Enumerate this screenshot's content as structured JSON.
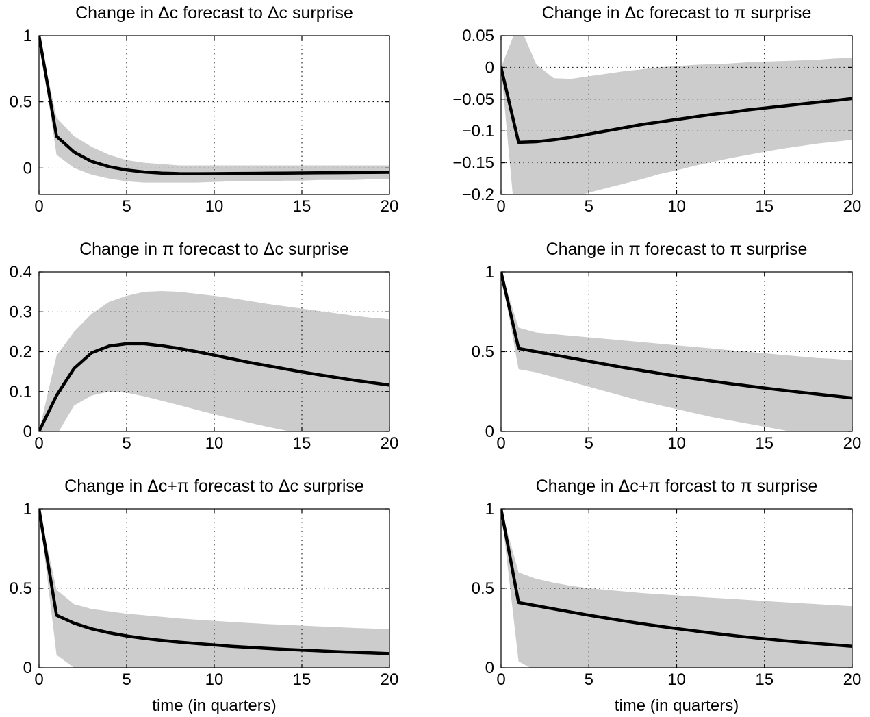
{
  "chart_data": [
    {
      "type": "line",
      "title": "Change in Δc forecast to Δc surprise",
      "xlabel": "",
      "xlim": [
        0,
        20
      ],
      "ylim": [
        -0.2,
        1
      ],
      "xticks": [
        0,
        5,
        10,
        15,
        20
      ],
      "yticks": [
        0,
        0.5,
        1
      ],
      "ytick_labels": [
        "0",
        "0.5",
        "1"
      ],
      "grid": true,
      "x": [
        0,
        1,
        2,
        3,
        4,
        5,
        6,
        7,
        8,
        9,
        10,
        11,
        12,
        13,
        14,
        15,
        16,
        17,
        18,
        19,
        20
      ],
      "series": [
        {
          "role": "point estimate",
          "values": [
            1.0,
            0.24,
            0.12,
            0.05,
            0.01,
            -0.015,
            -0.03,
            -0.038,
            -0.042,
            -0.043,
            -0.042,
            -0.041,
            -0.04,
            -0.039,
            -0.038,
            -0.037,
            -0.036,
            -0.035,
            -0.034,
            -0.033,
            -0.032
          ]
        },
        {
          "role": "band upper",
          "values": [
            1.0,
            0.38,
            0.24,
            0.16,
            0.1,
            0.06,
            0.04,
            0.03,
            0.02,
            0.02,
            0.02,
            0.02,
            0.02,
            0.02,
            0.02,
            0.02,
            0.02,
            0.02,
            0.02,
            0.02,
            0.02
          ]
        },
        {
          "role": "band lower",
          "values": [
            1.0,
            0.1,
            0.0,
            -0.05,
            -0.08,
            -0.1,
            -0.11,
            -0.11,
            -0.11,
            -0.11,
            -0.105,
            -0.1,
            -0.1,
            -0.1,
            -0.095,
            -0.095,
            -0.09,
            -0.09,
            -0.09,
            -0.085,
            -0.085
          ]
        }
      ]
    },
    {
      "type": "line",
      "title": "Change in Δc forecast to π surprise",
      "xlabel": "",
      "xlim": [
        0,
        20
      ],
      "ylim": [
        -0.2,
        0.05
      ],
      "xticks": [
        0,
        5,
        10,
        15,
        20
      ],
      "yticks": [
        -0.2,
        -0.15,
        -0.1,
        -0.05,
        0,
        0.05
      ],
      "ytick_labels": [
        "−0.2",
        "−0.15",
        "−0.1",
        "−0.05",
        "0",
        "0.05"
      ],
      "grid": true,
      "x": [
        0,
        1,
        2,
        3,
        4,
        5,
        6,
        7,
        8,
        9,
        10,
        11,
        12,
        13,
        14,
        15,
        16,
        17,
        18,
        19,
        20
      ],
      "series": [
        {
          "role": "point estimate",
          "values": [
            0.0,
            -0.118,
            -0.117,
            -0.114,
            -0.11,
            -0.105,
            -0.1,
            -0.095,
            -0.09,
            -0.086,
            -0.082,
            -0.078,
            -0.074,
            -0.071,
            -0.067,
            -0.064,
            -0.061,
            -0.058,
            -0.055,
            -0.052,
            -0.049
          ]
        },
        {
          "role": "band upper",
          "values": [
            0.0,
            0.07,
            0.005,
            -0.017,
            -0.018,
            -0.014,
            -0.01,
            -0.006,
            -0.003,
            0.0,
            0.002,
            0.004,
            0.005,
            0.006,
            0.008,
            0.009,
            0.01,
            0.011,
            0.012,
            0.014,
            0.015
          ]
        },
        {
          "role": "band lower",
          "values": [
            0.0,
            -0.3,
            -0.22,
            -0.215,
            -0.205,
            -0.197,
            -0.19,
            -0.183,
            -0.176,
            -0.168,
            -0.162,
            -0.155,
            -0.149,
            -0.143,
            -0.138,
            -0.133,
            -0.128,
            -0.124,
            -0.12,
            -0.117,
            -0.114
          ]
        }
      ]
    },
    {
      "type": "line",
      "title": "Change in π forecast to Δc surprise",
      "xlabel": "",
      "xlim": [
        0,
        20
      ],
      "ylim": [
        0,
        0.4
      ],
      "xticks": [
        0,
        5,
        10,
        15,
        20
      ],
      "yticks": [
        0,
        0.1,
        0.2,
        0.3,
        0.4
      ],
      "ytick_labels": [
        "0",
        "0.1",
        "0.2",
        "0.3",
        "0.4"
      ],
      "grid": true,
      "x": [
        0,
        1,
        2,
        3,
        4,
        5,
        6,
        7,
        8,
        9,
        10,
        11,
        12,
        13,
        14,
        15,
        16,
        17,
        18,
        19,
        20
      ],
      "series": [
        {
          "role": "point estimate",
          "values": [
            0.0,
            0.09,
            0.158,
            0.197,
            0.214,
            0.22,
            0.22,
            0.215,
            0.208,
            0.2,
            0.191,
            0.182,
            0.173,
            0.165,
            0.157,
            0.149,
            0.142,
            0.135,
            0.128,
            0.122,
            0.116
          ]
        },
        {
          "role": "band upper",
          "values": [
            0.0,
            0.19,
            0.25,
            0.295,
            0.325,
            0.34,
            0.35,
            0.352,
            0.35,
            0.345,
            0.34,
            0.334,
            0.327,
            0.32,
            0.314,
            0.308,
            0.302,
            0.296,
            0.29,
            0.285,
            0.281
          ]
        },
        {
          "role": "band lower",
          "values": [
            0.0,
            -0.01,
            0.065,
            0.09,
            0.1,
            0.097,
            0.088,
            0.077,
            0.066,
            0.054,
            0.043,
            0.032,
            0.022,
            0.012,
            0.003,
            -0.005,
            -0.013,
            -0.02,
            -0.027,
            -0.034,
            -0.04
          ]
        }
      ]
    },
    {
      "type": "line",
      "title": "Change in π forecast to π surprise",
      "xlabel": "",
      "xlim": [
        0,
        20
      ],
      "ylim": [
        0,
        1
      ],
      "xticks": [
        0,
        5,
        10,
        15,
        20
      ],
      "yticks": [
        0,
        0.5,
        1
      ],
      "ytick_labels": [
        "0",
        "0.5",
        "1"
      ],
      "grid": true,
      "x": [
        0,
        1,
        2,
        3,
        4,
        5,
        6,
        7,
        8,
        9,
        10,
        11,
        12,
        13,
        14,
        15,
        16,
        17,
        18,
        19,
        20
      ],
      "series": [
        {
          "role": "point estimate",
          "values": [
            1.0,
            0.52,
            0.5,
            0.48,
            0.46,
            0.44,
            0.42,
            0.4,
            0.382,
            0.364,
            0.347,
            0.331,
            0.315,
            0.3,
            0.286,
            0.272,
            0.259,
            0.246,
            0.234,
            0.222,
            0.21
          ]
        },
        {
          "role": "band upper",
          "values": [
            1.0,
            0.65,
            0.62,
            0.61,
            0.6,
            0.59,
            0.58,
            0.57,
            0.56,
            0.55,
            0.54,
            0.53,
            0.52,
            0.51,
            0.5,
            0.49,
            0.48,
            0.47,
            0.46,
            0.455,
            0.445
          ]
        },
        {
          "role": "band lower",
          "values": [
            1.0,
            0.39,
            0.37,
            0.34,
            0.31,
            0.28,
            0.25,
            0.22,
            0.19,
            0.165,
            0.14,
            0.115,
            0.09,
            0.07,
            0.05,
            0.03,
            0.01,
            -0.01,
            -0.02,
            -0.03,
            -0.04
          ]
        }
      ]
    },
    {
      "type": "line",
      "title": "Change in Δc+π forecast to Δc surprise",
      "xlabel": "time (in quarters)",
      "xlim": [
        0,
        20
      ],
      "ylim": [
        0,
        1
      ],
      "xticks": [
        0,
        5,
        10,
        15,
        20
      ],
      "yticks": [
        0,
        0.5,
        1
      ],
      "ytick_labels": [
        "0",
        "0.5",
        "1"
      ],
      "grid": true,
      "x": [
        0,
        1,
        2,
        3,
        4,
        5,
        6,
        7,
        8,
        9,
        10,
        11,
        12,
        13,
        14,
        15,
        16,
        17,
        18,
        19,
        20
      ],
      "series": [
        {
          "role": "point estimate",
          "values": [
            1.0,
            0.33,
            0.28,
            0.245,
            0.22,
            0.2,
            0.185,
            0.172,
            0.161,
            0.152,
            0.143,
            0.135,
            0.128,
            0.122,
            0.116,
            0.111,
            0.106,
            0.101,
            0.097,
            0.093,
            0.089
          ]
        },
        {
          "role": "band upper",
          "values": [
            1.0,
            0.49,
            0.4,
            0.37,
            0.355,
            0.34,
            0.33,
            0.32,
            0.31,
            0.302,
            0.295,
            0.288,
            0.281,
            0.275,
            0.27,
            0.265,
            0.26,
            0.255,
            0.25,
            0.246,
            0.242
          ]
        },
        {
          "role": "band lower",
          "values": [
            1.0,
            0.08,
            0.0,
            -0.04,
            -0.06,
            -0.07,
            -0.08,
            -0.085,
            -0.09,
            -0.09,
            -0.09,
            -0.09,
            -0.09,
            -0.09,
            -0.09,
            -0.09,
            -0.09,
            -0.09,
            -0.09,
            -0.09,
            -0.09
          ]
        }
      ]
    },
    {
      "type": "line",
      "title": "Change in Δc+π forcast to π surprise",
      "xlabel": "time (in quarters)",
      "xlim": [
        0,
        20
      ],
      "ylim": [
        0,
        1
      ],
      "xticks": [
        0,
        5,
        10,
        15,
        20
      ],
      "yticks": [
        0,
        0.5,
        1
      ],
      "ytick_labels": [
        "0",
        "0.5",
        "1"
      ],
      "grid": true,
      "x": [
        0,
        1,
        2,
        3,
        4,
        5,
        6,
        7,
        8,
        9,
        10,
        11,
        12,
        13,
        14,
        15,
        16,
        17,
        18,
        19,
        20
      ],
      "series": [
        {
          "role": "point estimate",
          "values": [
            1.0,
            0.41,
            0.39,
            0.37,
            0.35,
            0.33,
            0.312,
            0.294,
            0.277,
            0.261,
            0.246,
            0.232,
            0.218,
            0.205,
            0.193,
            0.182,
            0.171,
            0.161,
            0.152,
            0.143,
            0.135
          ]
        },
        {
          "role": "band upper",
          "values": [
            1.0,
            0.6,
            0.56,
            0.535,
            0.515,
            0.5,
            0.49,
            0.48,
            0.47,
            0.462,
            0.455,
            0.448,
            0.441,
            0.434,
            0.427,
            0.42,
            0.413,
            0.406,
            0.4,
            0.393,
            0.387
          ]
        },
        {
          "role": "band lower",
          "values": [
            1.0,
            0.04,
            -0.02,
            -0.05,
            -0.07,
            -0.08,
            -0.09,
            -0.1,
            -0.1,
            -0.1,
            -0.1,
            -0.1,
            -0.1,
            -0.1,
            -0.1,
            -0.1,
            -0.1,
            -0.1,
            -0.1,
            -0.1,
            -0.1
          ]
        }
      ]
    }
  ]
}
